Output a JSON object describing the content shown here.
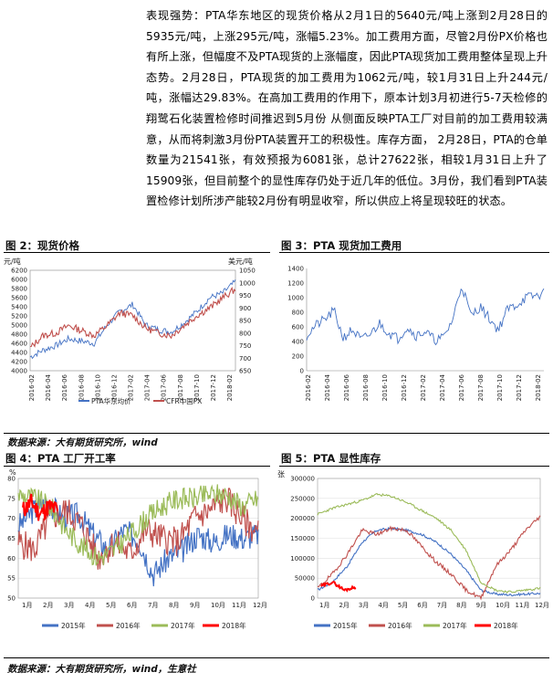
{
  "paragraph": "表现强势：PTA华东地区的现货价格从2月1日的5640元/吨上涨到2月28日的5935元/吨，上涨295元/吨，涨幅5.23%。加工费用方面，尽管2月份PX价格也有所上涨，但幅度不及PTA现货的上涨幅度，因此PTA现货加工费用整体呈现上升态势。2月28日，PTA现货的加工费用为1062元/吨，较1月31日上升244元/吨，涨幅达29.83%。在高加工费用的作用下，原本计划3月初进行5-7天检修的翔鹭石化装置检修时间推迟到5月份 从侧面反映PTA工厂对目前的加工费用较满意，从而将刺激3月份PTA装置开工的积极性。库存方面， 2月28日，PTA的仓单数量为21541张，有效预报为6081张，总计27622张，相较1月31日上升了15909张，但目前整个的显性库存仍处于近几年的低位。3月份，我们看到PTA装置检修计划所涉产能较2月份有明显收窄，所以供应上将呈现较旺的状态。",
  "fig2": {
    "title": "图 2：现货价格",
    "left_unit": "元/吨",
    "right_unit": "美元/吨",
    "left_ticks": [
      "6200",
      "6000",
      "5800",
      "5600",
      "5400",
      "5200",
      "5000",
      "4800",
      "4600",
      "4400",
      "4200",
      "4000"
    ],
    "right_ticks": [
      "1050",
      "1000",
      "950",
      "900",
      "850",
      "800",
      "750",
      "700",
      "650"
    ],
    "x_ticks": [
      "2016-02",
      "2016-04",
      "2016-06",
      "2016-08",
      "2016-10",
      "2016-12",
      "2017-02",
      "2017-04",
      "2017-06",
      "2017-08",
      "2017-10",
      "2017-12",
      "2018-02"
    ],
    "legend": [
      "PTA华东均价",
      "CFR中国PX"
    ],
    "colors": {
      "pta": "#4472c4",
      "px": "#c0504d"
    }
  },
  "fig3": {
    "title": "图 3：PTA 现货加工费用",
    "y_ticks": [
      "1400",
      "1200",
      "1000",
      "800",
      "600",
      "400",
      "200",
      "0"
    ],
    "x_ticks": [
      "2016-02",
      "2016-04",
      "2016-06",
      "2016-08",
      "2016-10",
      "2016-12",
      "2017-02",
      "2017-04",
      "2017-06",
      "2017-08",
      "2017-10",
      "2017-12",
      "2018-02"
    ],
    "color": "#4472c4"
  },
  "source1": "数据来源：大有期货研究所，wind",
  "fig4": {
    "title": "图 4：PTA 工厂开工率",
    "unit": "%",
    "y_ticks": [
      "80",
      "75",
      "70",
      "65",
      "60",
      "55",
      "50"
    ],
    "x_ticks": [
      "1月",
      "2月",
      "3月",
      "4月",
      "5月",
      "6月",
      "7月",
      "8月",
      "9月",
      "10月",
      "11月",
      "12月"
    ],
    "legend": [
      "2015年",
      "2016年",
      "2017年",
      "2018年"
    ]
  },
  "fig5": {
    "title": "图 5：PTA 显性库存",
    "unit": "张",
    "y_ticks": [
      "300000",
      "250000",
      "200000",
      "150000",
      "100000",
      "50000",
      "0"
    ],
    "x_ticks": [
      "1月",
      "2月",
      "3月",
      "4月",
      "5月",
      "6月",
      "7月",
      "8月",
      "9月",
      "10月",
      "11月",
      "12月"
    ],
    "legend": [
      "2015年",
      "2016年",
      "2017年",
      "2018年"
    ]
  },
  "series_colors": {
    "y2015": "#4472c4",
    "y2016": "#c0504d",
    "y2017": "#9bbb59",
    "y2018": "#ff0000"
  },
  "source2": "数据来源：大有期货研究所，wind，生意社"
}
